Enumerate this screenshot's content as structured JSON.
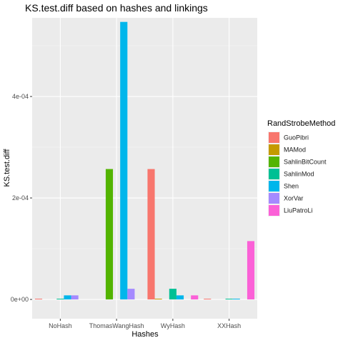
{
  "chart_data": {
    "type": "bar",
    "title": "KS.test.diff based on hashes and linkings",
    "xlabel": "Hashes",
    "ylabel": "KS.test.diff",
    "categories": [
      "NoHash",
      "ThomasWangHash",
      "WyHash",
      "XXHash"
    ],
    "ylim": [
      -3.8e-05,
      0.000555
    ],
    "y_ticks": [
      0,
      0.0002,
      0.0004
    ],
    "y_tick_labels": [
      "0e+00",
      "2e-04",
      "4e-04"
    ],
    "legend_title": "RandStrobeMethod",
    "legend_position": "right",
    "grid": true,
    "series": [
      {
        "name": "GuoPibri",
        "color": "#F8766D",
        "values": [
          1e-06,
          null,
          0.000257,
          1e-06
        ]
      },
      {
        "name": "MAMod",
        "color": "#C49A00",
        "values": [
          null,
          null,
          1e-06,
          null
        ]
      },
      {
        "name": "SahlinBitCount",
        "color": "#53B400",
        "values": [
          null,
          0.000257,
          null,
          null
        ]
      },
      {
        "name": "SahlinMod",
        "color": "#00C094",
        "values": [
          1e-06,
          null,
          2.1e-05,
          1e-06
        ]
      },
      {
        "name": "Shen",
        "color": "#00B6EB",
        "values": [
          8e-06,
          0.000547,
          8e-06,
          1e-06
        ]
      },
      {
        "name": "XorVar",
        "color": "#A58AFF",
        "values": [
          8e-06,
          2.1e-05,
          null,
          null
        ]
      },
      {
        "name": "LiuPatroLi",
        "color": "#FB61D7",
        "values": [
          null,
          null,
          8e-06,
          0.000115
        ]
      }
    ]
  }
}
